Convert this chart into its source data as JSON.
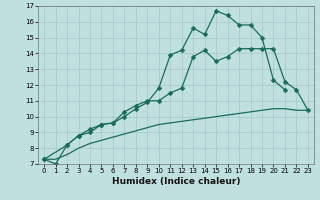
{
  "xlabel": "Humidex (Indice chaleur)",
  "background_color": "#c0e0e0",
  "grid_color": "#a0c8c8",
  "line_color": "#1a6b5a",
  "xlim": [
    -0.5,
    23.5
  ],
  "ylim": [
    7,
    17
  ],
  "xticks": [
    0,
    1,
    2,
    3,
    4,
    5,
    6,
    7,
    8,
    9,
    10,
    11,
    12,
    13,
    14,
    15,
    16,
    17,
    18,
    19,
    20,
    21,
    22,
    23
  ],
  "yticks": [
    7,
    8,
    9,
    10,
    11,
    12,
    13,
    14,
    15,
    16,
    17
  ],
  "line1_x": [
    0,
    1,
    2,
    3,
    4,
    5,
    6,
    7,
    8,
    9,
    10,
    11,
    12,
    13,
    14,
    15,
    16,
    17,
    18,
    19,
    20,
    21,
    22,
    23
  ],
  "line1_y": [
    7.3,
    7.0,
    8.2,
    8.8,
    9.2,
    9.5,
    9.6,
    10.0,
    10.5,
    10.9,
    11.8,
    13.9,
    14.2,
    15.6,
    15.2,
    16.7,
    16.4,
    15.8,
    15.8,
    15.0,
    12.3,
    11.7,
    null,
    null
  ],
  "line2_x": [
    0,
    2,
    3,
    4,
    5,
    6,
    7,
    8,
    9,
    10,
    11,
    12,
    13,
    14,
    15,
    16,
    17,
    18,
    19,
    20,
    21,
    22,
    23
  ],
  "line2_y": [
    7.3,
    8.2,
    8.8,
    9.0,
    9.5,
    9.6,
    10.3,
    10.7,
    11.0,
    11.0,
    11.5,
    11.8,
    13.8,
    14.2,
    13.5,
    13.8,
    14.3,
    14.3,
    14.3,
    14.3,
    12.2,
    11.7,
    10.4
  ],
  "line3_x": [
    0,
    1,
    2,
    3,
    4,
    5,
    6,
    7,
    8,
    9,
    10,
    11,
    12,
    13,
    14,
    15,
    16,
    17,
    18,
    19,
    20,
    21,
    22,
    23
  ],
  "line3_y": [
    7.3,
    7.3,
    7.6,
    8.0,
    8.3,
    8.5,
    8.7,
    8.9,
    9.1,
    9.3,
    9.5,
    9.6,
    9.7,
    9.8,
    9.9,
    10.0,
    10.1,
    10.2,
    10.3,
    10.4,
    10.5,
    10.5,
    10.4,
    10.4
  ],
  "marker_size": 2.5,
  "line_width": 0.9,
  "tick_fontsize": 5.0,
  "xlabel_fontsize": 6.5
}
